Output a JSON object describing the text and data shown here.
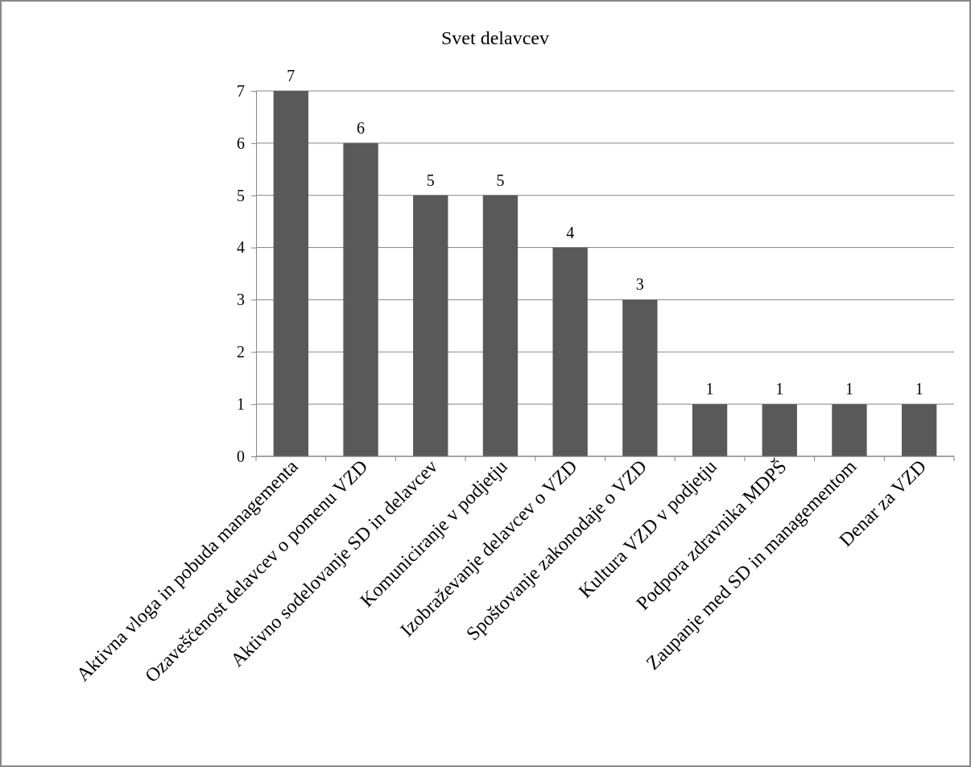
{
  "chart_data": {
    "type": "bar",
    "title": "Svet delavcev",
    "categories": [
      "Aktivna vloga in pobuda managementa",
      "Ozaveščenost delavcev o pomenu VZD",
      "Aktivno sodelovanje SD in delavcev",
      "Komuniciranje v podjetju",
      "Izobraževanje delavcev o VZD",
      "Spoštovanje zakonodaje o VZD",
      "Kultura VZD v podjetju",
      "Podpora zdravnika MDPŠ",
      "Zaupanje med SD in managementom",
      "Denar za VZD"
    ],
    "values": [
      7,
      6,
      5,
      5,
      4,
      3,
      1,
      1,
      1,
      1
    ],
    "color": "#595959",
    "ylim": [
      0,
      7
    ],
    "yticks": [
      0,
      1,
      2,
      3,
      4,
      5,
      6,
      7
    ],
    "grid": "y",
    "data_labels": true
  }
}
